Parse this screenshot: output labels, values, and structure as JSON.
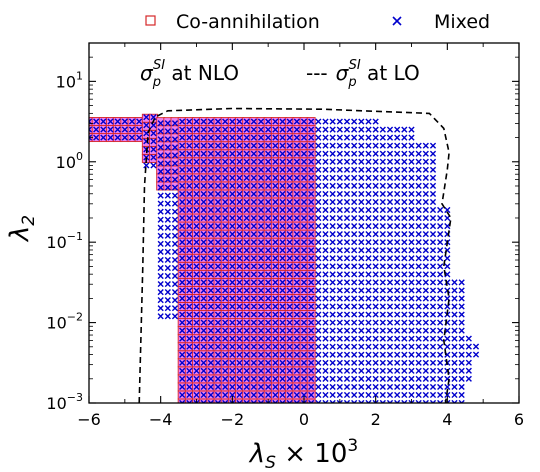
{
  "chart_data": {
    "type": "scatter",
    "x_label_base": "λ",
    "x_label_sub": "S",
    "x_label_tail": " × 10",
    "x_label_exp": "3",
    "y_label_base": "λ",
    "y_label_sub": "2",
    "y_scale": "log",
    "xlim": [
      -6,
      6
    ],
    "ylim": [
      0.001,
      30
    ],
    "x_ticks": [
      -6,
      -4,
      -2,
      0,
      2,
      4,
      6
    ],
    "y_ticks": [
      {
        "base": "10",
        "exp": "1",
        "value": 10
      },
      {
        "base": "10",
        "exp": "0",
        "value": 1
      },
      {
        "base": "10",
        "exp": "−1",
        "value": 0.1
      },
      {
        "base": "10",
        "exp": "−2",
        "value": 0.01
      },
      {
        "base": "10",
        "exp": "−3",
        "value": 0.001
      }
    ],
    "grid": false,
    "legend_position": "top, outside plot",
    "series": [
      {
        "name": "Co-annihilation",
        "marker": "open-square",
        "color": "#d62728",
        "fill": "#ee82ee",
        "region": {
          "x_step": 0.2,
          "log_y_step": 0.1,
          "columns": [
            {
              "x_from": -6.0,
              "x_to": -4.6,
              "y_min": 2.0,
              "y_max": 3.6
            },
            {
              "x_from": -4.4,
              "x_to": -4.2,
              "y_min": 1.1,
              "y_max": 3.6
            },
            {
              "x_from": -4.0,
              "x_to": -3.6,
              "y_min": 0.5,
              "y_max": 3.6
            },
            {
              "x_from": -3.4,
              "x_to": -3.2,
              "y_min": 0.001,
              "y_max": 3.6
            },
            {
              "x_from": -3.0,
              "x_to": 0.2,
              "y_min": 0.001,
              "y_max": 3.6
            }
          ]
        }
      },
      {
        "name": "Mixed",
        "marker": "x",
        "color": "#0000cc",
        "region": {
          "x_step": 0.2,
          "log_y_step": 0.1,
          "columns": [
            {
              "x_from": -6.0,
              "x_to": -4.6,
              "y_min": 2.0,
              "y_max": 3.6
            },
            {
              "x_from": -4.4,
              "x_to": -4.2,
              "y_min": 0.9,
              "y_max": 3.6
            },
            {
              "x_from": -4.0,
              "x_to": -3.6,
              "y_min": 0.012,
              "y_max": 3.6
            },
            {
              "x_from": -3.4,
              "x_to": -3.2,
              "y_min": 0.001,
              "y_max": 3.6
            },
            {
              "x_from": -3.0,
              "x_to": 0.2,
              "y_min": 0.001,
              "y_max": 3.6
            },
            {
              "x_from": 0.4,
              "x_to": 2.0,
              "y_min": 0.001,
              "y_max": 3.6
            },
            {
              "x_from": 2.2,
              "x_to": 3.0,
              "y_min": 0.001,
              "y_max": 3.0
            },
            {
              "x_from": 3.2,
              "x_to": 3.6,
              "y_min": 0.001,
              "y_max": 1.6
            },
            {
              "x_from": 3.8,
              "x_to": 4.0,
              "y_min": 0.001,
              "y_max": 0.3
            },
            {
              "x_from": 4.2,
              "x_to": 4.4,
              "y_min": 0.001,
              "y_max": 0.035
            },
            {
              "x_from": 4.6,
              "x_to": 4.6,
              "y_min": 0.002,
              "y_max": 0.007
            },
            {
              "x_from": 4.8,
              "x_to": 4.8,
              "y_min": 0.004,
              "y_max": 0.006
            }
          ]
        }
      }
    ],
    "annotations": [
      {
        "kind": "solid-contour",
        "label_sym": "σ",
        "label_sub": "p",
        "label_sup": "SI",
        "label_tail": " at NLO",
        "color": "#000000",
        "points": []
      },
      {
        "kind": "dashed-contour",
        "label_dash": "---",
        "label_sym": "σ",
        "label_sub": "p",
        "label_sup": "SI",
        "label_tail": " at LO",
        "color": "#000000",
        "points": [
          [
            -4.6,
            0.001
          ],
          [
            -4.5,
            0.05
          ],
          [
            -4.45,
            0.5
          ],
          [
            -4.35,
            2.3
          ],
          [
            -4.15,
            3.6
          ],
          [
            -3.8,
            4.3
          ],
          [
            -2.0,
            4.6
          ],
          [
            0.5,
            4.5
          ],
          [
            3.5,
            4.0
          ],
          [
            3.9,
            2.6
          ],
          [
            4.05,
            1.3
          ],
          [
            4.0,
            0.8
          ],
          [
            3.85,
            0.3
          ],
          [
            4.1,
            0.2
          ],
          [
            3.9,
            0.05
          ],
          [
            4.05,
            0.02
          ],
          [
            3.9,
            0.006
          ],
          [
            4.05,
            0.002
          ],
          [
            3.95,
            0.001
          ]
        ]
      }
    ]
  }
}
